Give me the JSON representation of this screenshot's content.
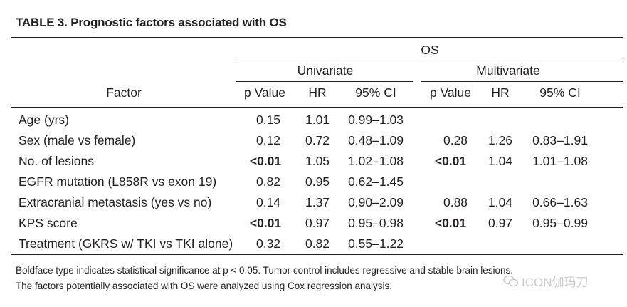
{
  "title": "TABLE 3. Prognostic factors associated with OS",
  "header": {
    "group": "OS",
    "univariate": "Univariate",
    "multivariate": "Multivariate",
    "factor": "Factor",
    "cols": [
      "p Value",
      "HR",
      "95% CI",
      "p Value",
      "HR",
      "95% CI"
    ]
  },
  "rows": [
    {
      "factor": "Age (yrs)",
      "u_p": "0.15",
      "u_hr": "1.01",
      "u_ci": "0.99–1.03",
      "m_p": "",
      "m_hr": "",
      "m_ci": ""
    },
    {
      "factor": "Sex (male vs female)",
      "u_p": "0.12",
      "u_hr": "0.72",
      "u_ci": "0.48–1.09",
      "m_p": "0.28",
      "m_hr": "1.26",
      "m_ci": "0.83–1.91"
    },
    {
      "factor": "No. of lesions",
      "u_p": "<0.01",
      "u_hr": "1.05",
      "u_ci": "1.02–1.08",
      "m_p": "<0.01",
      "m_hr": "1.04",
      "m_ci": "1.01–1.08"
    },
    {
      "factor": "EGFR mutation (L858R vs exon 19)",
      "u_p": "0.82",
      "u_hr": "0.95",
      "u_ci": "0.62–1.45",
      "m_p": "",
      "m_hr": "",
      "m_ci": ""
    },
    {
      "factor": "Extracranial metastasis (yes vs no)",
      "u_p": "0.14",
      "u_hr": "1.37",
      "u_ci": "0.90–2.09",
      "m_p": "0.88",
      "m_hr": "1.04",
      "m_ci": "0.66–1.63"
    },
    {
      "factor": "KPS score",
      "u_p": "<0.01",
      "u_hr": "0.97",
      "u_ci": "0.95–0.98",
      "m_p": "<0.01",
      "m_hr": "0.97",
      "m_ci": "0.95–0.99"
    },
    {
      "factor": "Treatment (GKRS w/ TKI vs TKI alone)",
      "u_p": "0.32",
      "u_hr": "0.82",
      "u_ci": "0.55–1.22",
      "m_p": "",
      "m_hr": "",
      "m_ci": ""
    }
  ],
  "footnotes": [
    "Boldface type indicates statistical significance at p < 0.05. Tumor control includes regressive and stable brain lesions.",
    "The factors potentially associated with OS were analyzed using Cox regression analysis."
  ],
  "watermark": "ICON伽玛刀"
}
